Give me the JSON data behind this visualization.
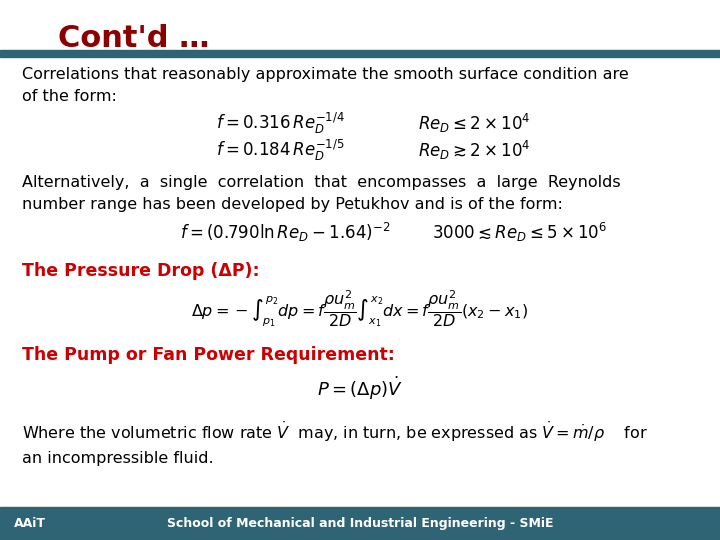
{
  "title": "Cont'd …",
  "title_color": "#8B0000",
  "title_fontsize": 22,
  "bg_color": "#FFFFFF",
  "header_bar_color": "#2F6474",
  "footer_bar_color": "#2F6474",
  "footer_left": "AAiT",
  "footer_center": "School of Mechanical and Industrial Engineering - SMiE",
  "footer_fontsize": 9,
  "body_fontsize": 11.5,
  "red_heading_color": "#CC0000",
  "text_color": "#000000",
  "para1": "Correlations that reasonably approximate the smooth surface condition are\nof the form:",
  "eq1a": "$f = 0.316\\,Re_D^{-1/4}$",
  "eq1a_cond": "$Re_D \\leq 2 \\times 10^4$",
  "eq1b": "$f = 0.184\\,Re_D^{-1/5}$",
  "eq1b_cond": "$Re_D \\gtrsim 2 \\times 10^4$",
  "para2": "Alternatively,  a  single  correlation  that  encompasses  a  large  Reynolds\nnumber range has been developed by Petukhov and is of the form:",
  "eq2": "$f = (0.790\\ln Re_D - 1.64)^{-2}$",
  "eq2_cond": "$3000 \\lesssim Re_D \\leq 5 \\times 10^6$",
  "heading1": "The Pressure Drop (ΔP):",
  "eq3": "$\\Delta p = -\\int_{p_1}^{p_2} dp = f\\dfrac{\\rho u_m^2}{2D}\\int_{x_1}^{x_2} dx = f\\dfrac{\\rho u_m^2}{2D}(x_2 - x_1)$",
  "heading2": "The Pump or Fan Power Requirement:",
  "eq4": "$P = (\\Delta p)\\dot{V}$",
  "para3": "Where the volumetric flow rate $\\dot{V}$  may, in turn, be expressed as $\\dot{V} = \\dot{m}/\\rho$    for\nan incompressible fluid."
}
